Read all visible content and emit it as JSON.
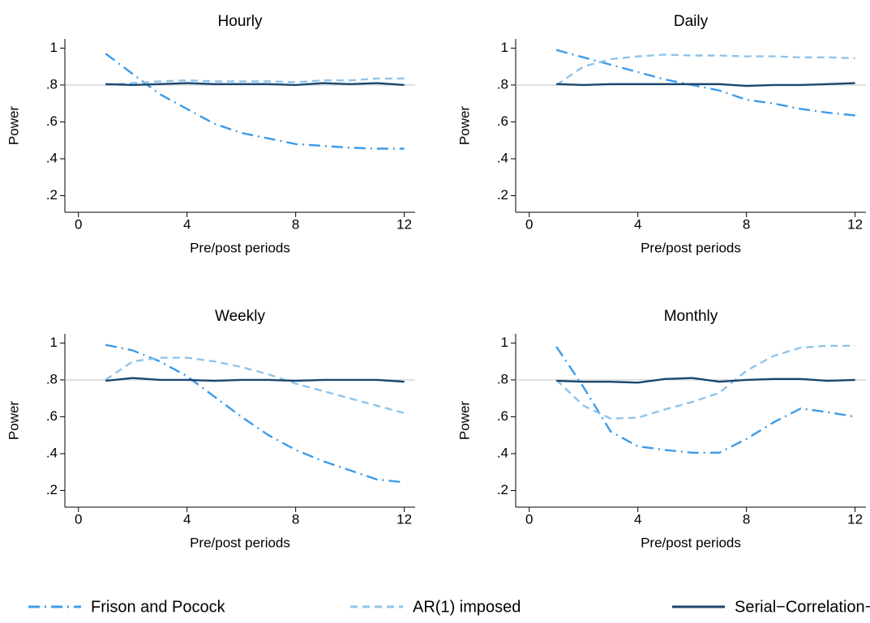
{
  "series_styles": [
    {
      "name": "Frison and Pocock",
      "color": "#3d9be9",
      "style": "dash-dot"
    },
    {
      "name": "AR(1) imposed",
      "color": "#8ec4ea",
      "style": "dash"
    },
    {
      "name": "Serial−Correlation−Robust",
      "color": "#1a476f",
      "style": "solid"
    }
  ],
  "chart_data": [
    {
      "type": "line",
      "title": "Hourly",
      "xlabel": "Pre/post periods",
      "ylabel": "Power",
      "x": [
        1,
        2,
        3,
        4,
        5,
        6,
        7,
        8,
        9,
        10,
        11,
        12
      ],
      "series": [
        {
          "values": [
            0.97,
            0.86,
            0.75,
            0.67,
            0.59,
            0.54,
            0.51,
            0.48,
            0.47,
            0.46,
            0.455,
            0.455
          ]
        },
        {
          "values": [
            0.8,
            0.81,
            0.82,
            0.825,
            0.82,
            0.82,
            0.82,
            0.815,
            0.825,
            0.825,
            0.835,
            0.835
          ]
        },
        {
          "values": [
            0.805,
            0.8,
            0.805,
            0.81,
            0.805,
            0.805,
            0.805,
            0.8,
            0.81,
            0.805,
            0.81,
            0.8
          ]
        }
      ],
      "xlim": [
        -0.5,
        12.4
      ],
      "ylim": [
        0.11,
        1.05
      ],
      "xticks": [
        0,
        4,
        8,
        12
      ],
      "yticks": [
        {
          "value": 0.2,
          "label": ".2"
        },
        {
          "value": 0.4,
          "label": ".4"
        },
        {
          "value": 0.6,
          "label": ".6"
        },
        {
          "value": 0.8,
          "label": ".8"
        },
        1
      ],
      "refline": 0.8
    },
    {
      "type": "line",
      "title": "Daily",
      "xlabel": "Pre/post periods",
      "ylabel": "Power",
      "x": [
        1,
        2,
        3,
        4,
        5,
        6,
        7,
        8,
        9,
        10,
        11,
        12
      ],
      "series": [
        {
          "values": [
            0.99,
            0.95,
            0.91,
            0.87,
            0.83,
            0.8,
            0.77,
            0.72,
            0.7,
            0.67,
            0.65,
            0.635
          ]
        },
        {
          "values": [
            0.8,
            0.9,
            0.94,
            0.955,
            0.965,
            0.96,
            0.96,
            0.955,
            0.955,
            0.95,
            0.95,
            0.945
          ]
        },
        {
          "values": [
            0.805,
            0.8,
            0.805,
            0.805,
            0.805,
            0.805,
            0.805,
            0.795,
            0.8,
            0.8,
            0.805,
            0.81
          ]
        }
      ],
      "xlim": [
        -0.5,
        12.4
      ],
      "ylim": [
        0.11,
        1.05
      ],
      "xticks": [
        0,
        4,
        8,
        12
      ],
      "yticks": [
        {
          "value": 0.2,
          "label": ".2"
        },
        {
          "value": 0.4,
          "label": ".4"
        },
        {
          "value": 0.6,
          "label": ".6"
        },
        {
          "value": 0.8,
          "label": ".8"
        },
        1
      ],
      "refline": 0.8
    },
    {
      "type": "line",
      "title": "Weekly",
      "xlabel": "Pre/post periods",
      "ylabel": "Power",
      "x": [
        1,
        2,
        3,
        4,
        5,
        6,
        7,
        8,
        9,
        10,
        11,
        12
      ],
      "series": [
        {
          "values": [
            0.99,
            0.96,
            0.9,
            0.82,
            0.71,
            0.6,
            0.5,
            0.42,
            0.36,
            0.31,
            0.26,
            0.245
          ]
        },
        {
          "values": [
            0.8,
            0.9,
            0.92,
            0.92,
            0.9,
            0.87,
            0.83,
            0.78,
            0.74,
            0.7,
            0.66,
            0.62
          ]
        },
        {
          "values": [
            0.795,
            0.81,
            0.8,
            0.8,
            0.795,
            0.8,
            0.8,
            0.795,
            0.8,
            0.8,
            0.8,
            0.79
          ]
        }
      ],
      "xlim": [
        -0.5,
        12.4
      ],
      "ylim": [
        0.11,
        1.05
      ],
      "xticks": [
        0,
        4,
        8,
        12
      ],
      "yticks": [
        {
          "value": 0.2,
          "label": ".2"
        },
        {
          "value": 0.4,
          "label": ".4"
        },
        {
          "value": 0.6,
          "label": ".6"
        },
        {
          "value": 0.8,
          "label": ".8"
        },
        1
      ],
      "refline": 0.8
    },
    {
      "type": "line",
      "title": "Monthly",
      "xlabel": "Pre/post periods",
      "ylabel": "Power",
      "x": [
        1,
        2,
        3,
        4,
        5,
        6,
        7,
        8,
        9,
        10,
        11,
        12
      ],
      "series": [
        {
          "values": [
            0.98,
            0.76,
            0.52,
            0.44,
            0.42,
            0.405,
            0.405,
            0.48,
            0.57,
            0.645,
            0.625,
            0.6
          ]
        },
        {
          "values": [
            0.8,
            0.66,
            0.59,
            0.595,
            0.64,
            0.68,
            0.73,
            0.85,
            0.93,
            0.975,
            0.985,
            0.985
          ]
        },
        {
          "values": [
            0.795,
            0.79,
            0.79,
            0.785,
            0.805,
            0.81,
            0.79,
            0.8,
            0.805,
            0.805,
            0.795,
            0.8
          ]
        }
      ],
      "xlim": [
        -0.5,
        12.4
      ],
      "ylim": [
        0.11,
        1.05
      ],
      "xticks": [
        0,
        4,
        8,
        12
      ],
      "yticks": [
        {
          "value": 0.2,
          "label": ".2"
        },
        {
          "value": 0.4,
          "label": ".4"
        },
        {
          "value": 0.6,
          "label": ".6"
        },
        {
          "value": 0.8,
          "label": ".8"
        },
        1
      ],
      "refline": 0.8
    }
  ]
}
